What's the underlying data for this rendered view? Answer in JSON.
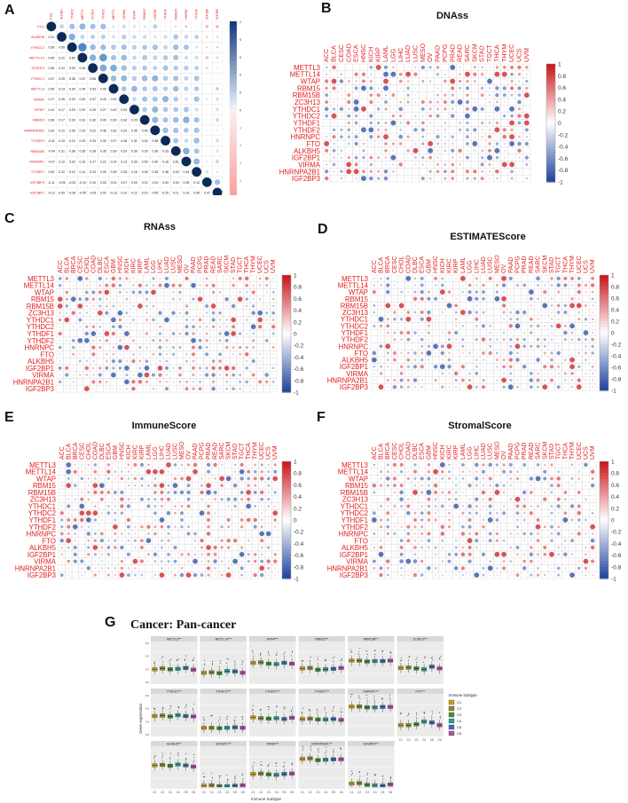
{
  "figure": {
    "panels": [
      {
        "letter": "A",
        "title": ""
      },
      {
        "letter": "B",
        "title": "DNAss"
      },
      {
        "letter": "C",
        "title": "RNAss"
      },
      {
        "letter": "D",
        "title": "ESTIMATEScore"
      },
      {
        "letter": "E",
        "title": "ImmuneScore"
      },
      {
        "letter": "F",
        "title": "StromalScore"
      },
      {
        "letter": "G",
        "title": "Cancer: Pan-cancer"
      }
    ]
  },
  "colors": {
    "positive": "#d7191c",
    "negative": "#2b5aa8",
    "label": "#e41a1c",
    "grid": "#d9d9d9"
  },
  "chart_data": [
    {
      "type": "heatmap",
      "panel": "A",
      "title": "",
      "genes": [
        "FTO",
        "ALKBH5",
        "YTHDC2",
        "METTL14",
        "ZC3H13",
        "YTHDC1",
        "METTL3",
        "VIRMA",
        "WTAP",
        "RBM15",
        "HNRNPA2B1",
        "YTHDF3",
        "RBM15B",
        "HNRNPC",
        "YTHDF1",
        "IGF2BP3",
        "IGF2BP1"
      ],
      "shown_lower_values": [
        [
          0.21
        ],
        [
          0.36,
          0.5
        ],
        [
          0.45,
          0.22,
          0.8
        ],
        [
          0.35,
          0.24,
          0.39,
          0.49
        ],
        [
          0.37,
          0.25,
          0.38,
          0.67,
          0.55
        ],
        [
          0.09,
          0.13,
          0.3,
          0.34,
          0.53,
          0.4
        ],
        [
          0.17,
          0.26,
          0.34,
          0.4,
          0.37,
          0.43,
          0.32
        ],
        [
          0.1,
          0.17,
          0.25,
          0.2,
          0.26,
          0.27,
          0.43,
          0.2
        ],
        [
          0.08,
          0.17,
          0.3,
          0.31,
          0.3,
          0.4,
          0.3,
          0.34,
          0.29
        ],
        [
          0.24,
          0.1,
          0.35,
          0.23,
          0.22,
          0.46,
          0.33,
          0.33,
          0.45,
          0.45
        ],
        [
          -0.01,
          0.15,
          0.22,
          0.29,
          0.33,
          0.3,
          0.27,
          0.46,
          0.31,
          0.34,
          0.38
        ],
        [
          -0.04,
          0.31,
          0.38,
          0.35,
          0.28,
          0.35,
          0.39,
          0.29,
          0.3,
          0.39,
          0.36,
          0.33
        ],
        [
          -0.07,
          0.19,
          0.33,
          0.16,
          0.27,
          0.22,
          0.24,
          0.13,
          0.33,
          0.5,
          0.3,
          0.18,
          0.51
        ],
        [
          0.03,
          0.22,
          0.1,
          0.14,
          0.23,
          0.33,
          0.28,
          0.35,
          0.16,
          0.36,
          0.35,
          0.38,
          0.33,
          0.44
        ],
        [
          -0.11,
          -0.05,
          -0.03,
          -0.1,
          0.1,
          0.03,
          0.01,
          0.07,
          0.0,
          0.02,
          0.04,
          0.03,
          0.0,
          0.05,
          0.12
        ],
        [
          -0.12,
          0.09,
          -0.05,
          -0.05,
          -0.01,
          0.02,
          -0.12,
          0.12,
          0.12,
          0.15,
          0.05,
          0.15,
          0.11,
          0.16,
          0.06,
          0.37
        ]
      ],
      "colorbar_ticks": [
        "1",
        "0.8",
        "0.6",
        "0.4",
        "0.2",
        "0",
        "-0.2",
        "-0.4",
        "-0.6",
        "-0.8",
        "-1"
      ]
    },
    {
      "type": "heatmap",
      "panel": "B",
      "title": "DNAss",
      "rows": [
        "METTL3",
        "METTL14",
        "WTAP",
        "RBM15",
        "RBM15B",
        "ZC3H13",
        "YTHDC1",
        "YTHDC2",
        "YTHDF1",
        "YTHDF2",
        "HNRNPC",
        "FTO",
        "ALKBH5",
        "IGF2BP1",
        "VIRMA",
        "HNRNPA2B1",
        "IGF2BP3"
      ],
      "columns": [
        "ACC",
        "BLCA",
        "CESC",
        "COAD",
        "ESCA",
        "HNSC",
        "KICH",
        "KIRP",
        "LAML",
        "LGG",
        "LIHC",
        "LUAD",
        "LUSC",
        "MESO",
        "OV",
        "PAAD",
        "PCPG",
        "PRAD",
        "READ",
        "SARC",
        "SKCM",
        "STAD",
        "TGCT",
        "THCA",
        "THYM",
        "UCEC",
        "UCS",
        "UVM"
      ],
      "colorbar_ticks": [
        "1",
        "0.8",
        "0.6",
        "0.4",
        "0.2",
        "0",
        "-0.2",
        "-0.4",
        "-0.6",
        "-0.8",
        "-1"
      ]
    },
    {
      "type": "heatmap",
      "panel": "C",
      "title": "RNAss",
      "rows": [
        "METTL3",
        "METTL14",
        "WTAP",
        "RBM15",
        "RBM15B",
        "ZC3H13",
        "YTHDC1",
        "YTHDC2",
        "YTHDF1",
        "YTHDF2",
        "HNRNPC",
        "FTO",
        "ALKBH5",
        "IGF2BP1",
        "VIRMA",
        "HNRNPA2B1",
        "IGF2BP3"
      ],
      "columns": [
        "ACC",
        "BLCA",
        "BRCA",
        "CESC",
        "CHOL",
        "COAD",
        "DLBC",
        "ESCA",
        "GBM",
        "HNSC",
        "KICH",
        "KIRC",
        "KIRP",
        "LAML",
        "LGG",
        "LIHC",
        "LUAD",
        "LUSC",
        "MESO",
        "OV",
        "PAAD",
        "PCPG",
        "PRAD",
        "READ",
        "SARC",
        "SKCM",
        "STAD",
        "TGCT",
        "THCA",
        "THYM",
        "UCEC",
        "UCS",
        "UVM"
      ],
      "colorbar_ticks": [
        "1",
        "0.8",
        "0.6",
        "0.4",
        "0.2",
        "0",
        "-0.2",
        "-0.4",
        "-0.6",
        "-0.8",
        "-1"
      ]
    },
    {
      "type": "heatmap",
      "panel": "D",
      "title": "ESTIMATEScore",
      "rows": [
        "METTL3",
        "METTL14",
        "WTAP",
        "RBM15",
        "RBM15B",
        "ZC3H13",
        "YTHDC1",
        "YTHDC2",
        "YTHDF1",
        "YTHDF2",
        "HNRNPC",
        "FTO",
        "ALKBH5",
        "IGF2BP1",
        "VIRMA",
        "HNRNPA2B1",
        "IGF2BP3"
      ],
      "columns": [
        "ACC",
        "BLCA",
        "BRCA",
        "CESC",
        "CHOL",
        "COAD",
        "DLBC",
        "ESCA",
        "GBM",
        "HNSC",
        "KICH",
        "KIRC",
        "KIRP",
        "LAML",
        "LGG",
        "LIHC",
        "LUAD",
        "LUSC",
        "MESO",
        "OV",
        "PAAD",
        "PCPG",
        "PRAD",
        "READ",
        "SARC",
        "SKCM",
        "STAD",
        "TGCT",
        "THCA",
        "THYM",
        "UCEC",
        "UCS",
        "UVM"
      ],
      "colorbar_ticks": [
        "1",
        "0.8",
        "0.6",
        "0.4",
        "0.2",
        "0",
        "-0.2",
        "-0.4",
        "-0.6",
        "-0.8",
        "-1"
      ]
    },
    {
      "type": "heatmap",
      "panel": "E",
      "title": "ImmuneScore",
      "rows": [
        "METTL3",
        "METTL14",
        "WTAP",
        "RBM15",
        "RBM15B",
        "ZC3H13",
        "YTHDC1",
        "YTHDC2",
        "YTHDF1",
        "YTHDF2",
        "HNRNPC",
        "FTO",
        "ALKBH5",
        "IGF2BP1",
        "VIRMA",
        "HNRNPA2B1",
        "IGF2BP3"
      ],
      "columns": [
        "ACC",
        "BLCA",
        "BRCA",
        "CESC",
        "CHOL",
        "COAD",
        "DLBC",
        "ESCA",
        "GBM",
        "HNSC",
        "KICH",
        "KIRC",
        "KIRP",
        "LAML",
        "LGG",
        "LIHC",
        "LUAD",
        "LUSC",
        "MESO",
        "OV",
        "PAAD",
        "PCPG",
        "PRAD",
        "READ",
        "SARC",
        "SKCM",
        "STAD",
        "TGCT",
        "THCA",
        "THYM",
        "UCEC",
        "UCS",
        "UVM"
      ],
      "colorbar_ticks": [
        "1",
        "0.8",
        "0.6",
        "0.4",
        "0.2",
        "0",
        "-0.2",
        "-0.4",
        "-0.6",
        "-0.8",
        "-1"
      ]
    },
    {
      "type": "heatmap",
      "panel": "F",
      "title": "StromalScore",
      "rows": [
        "METTL3",
        "METTL14",
        "WTAP",
        "RBM15",
        "RBM15B",
        "ZC3H13",
        "YTHDC1",
        "YTHDC2",
        "YTHDF1",
        "YTHDF2",
        "HNRNPC",
        "FTO",
        "ALKBH5",
        "IGF2BP1",
        "VIRMA",
        "HNRNPA2B1",
        "IGF2BP3"
      ],
      "columns": [
        "ACC",
        "BLCA",
        "BRCA",
        "CESC",
        "CHOL",
        "COAD",
        "DLBC",
        "ESCA",
        "GBM",
        "HNSC",
        "KICH",
        "KIRC",
        "KIRP",
        "LAML",
        "LGG",
        "LIHC",
        "LUAD",
        "LUSC",
        "MESO",
        "OV",
        "PAAD",
        "PCPG",
        "PRAD",
        "READ",
        "SARC",
        "SKCM",
        "STAD",
        "TGCT",
        "THCA",
        "THYM",
        "UCEC",
        "UCS",
        "UVM"
      ],
      "colorbar_ticks": [
        "1",
        "0.8",
        "0.6",
        "0.4",
        "0.2",
        "0",
        "-0.2",
        "-0.4",
        "-0.6",
        "-0.8",
        "-1"
      ]
    },
    {
      "type": "box",
      "panel": "G",
      "title": "Cancer: Pan-cancer",
      "ylabel": "Gene expression",
      "xlabel": "Immune Subtype",
      "categories": [
        "C1",
        "C2",
        "C3",
        "C4",
        "C5",
        "C6"
      ],
      "category_colors": [
        "#c8a21e",
        "#8a8a2a",
        "#3d8f3d",
        "#2aa08f",
        "#3a6fb0",
        "#b04fa8"
      ],
      "facets": [
        "METTL3***",
        "METTL14***",
        "WTAP***",
        "RBM15***",
        "RBM15B***",
        "ZC3H13***",
        "YTHDC1***",
        "YTHDC2***",
        "YTHDF1***",
        "YTHDF2***",
        "HNRNPC***",
        "FTO***",
        "ALKBH5***",
        "IGF2BP1***",
        "VIRMA***",
        "HNRNPA2B1***",
        "IGF2BP3***"
      ],
      "medians": [
        [
          3.0,
          3.2,
          3.0,
          3.1,
          3.3,
          2.9
        ],
        [
          2.2,
          2.3,
          2.1,
          2.6,
          2.5,
          2.2
        ],
        [
          4.5,
          4.6,
          4.3,
          4.2,
          4.5,
          4.3
        ],
        [
          3.2,
          3.3,
          2.9,
          3.0,
          3.1,
          3.3
        ],
        [
          5.0,
          5.0,
          4.8,
          4.9,
          4.9,
          5.0
        ],
        [
          3.3,
          3.4,
          3.2,
          3.0,
          3.6,
          3.2
        ],
        [
          4.3,
          4.4,
          4.2,
          4.5,
          4.3,
          4.2
        ],
        [
          1.6,
          1.6,
          1.5,
          1.6,
          1.7,
          1.6
        ],
        [
          4.0,
          3.8,
          3.7,
          3.8,
          3.6,
          3.9
        ],
        [
          3.6,
          3.7,
          3.5,
          3.5,
          3.6,
          3.4
        ],
        [
          6.5,
          6.5,
          6.3,
          6.3,
          6.4,
          6.4
        ],
        [
          2.2,
          2.2,
          2.4,
          3.0,
          2.8,
          2.2
        ],
        [
          5.0,
          5.1,
          4.9,
          5.2,
          5.0,
          4.7
        ],
        [
          0.3,
          0.4,
          0.2,
          0.2,
          0.3,
          0.4
        ],
        [
          3.0,
          3.1,
          2.9,
          2.8,
          3.0,
          3.1
        ],
        [
          6.5,
          6.6,
          6.2,
          6.3,
          6.4,
          6.4
        ],
        [
          0.8,
          0.9,
          0.5,
          0.4,
          0.3,
          0.6
        ]
      ],
      "ylim": [
        0,
        9
      ]
    }
  ]
}
